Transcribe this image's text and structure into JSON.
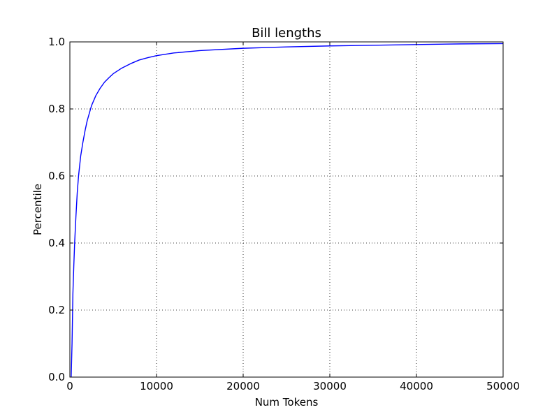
{
  "chart_data": {
    "type": "line",
    "title": "Bill lengths",
    "xlabel": "Num Tokens",
    "ylabel": "Percentile",
    "xlim": [
      0,
      50000
    ],
    "ylim": [
      0.0,
      1.0
    ],
    "xticks": [
      0,
      10000,
      20000,
      30000,
      40000,
      50000
    ],
    "xtick_labels": [
      "0",
      "10000",
      "20000",
      "30000",
      "40000",
      "50000"
    ],
    "yticks": [
      0.0,
      0.2,
      0.4,
      0.6,
      0.8,
      1.0
    ],
    "ytick_labels": [
      "0.0",
      "0.2",
      "0.4",
      "0.6",
      "0.8",
      "1.0"
    ],
    "grid": true,
    "series": [
      {
        "color": "#0000ff",
        "x": [
          150,
          250,
          350,
          450,
          550,
          700,
          850,
          1000,
          1250,
          1500,
          1750,
          2000,
          2500,
          3000,
          3500,
          4000,
          4500,
          5000,
          6000,
          7000,
          8000,
          9000,
          10000,
          12000,
          15000,
          20000,
          25000,
          30000,
          35000,
          40000,
          45000,
          50000
        ],
        "y": [
          0.0,
          0.1,
          0.25,
          0.33,
          0.4,
          0.48,
          0.55,
          0.6,
          0.66,
          0.7,
          0.735,
          0.765,
          0.81,
          0.84,
          0.862,
          0.88,
          0.893,
          0.905,
          0.922,
          0.935,
          0.946,
          0.953,
          0.959,
          0.967,
          0.974,
          0.981,
          0.985,
          0.988,
          0.99,
          0.992,
          0.994,
          0.995
        ]
      }
    ]
  }
}
